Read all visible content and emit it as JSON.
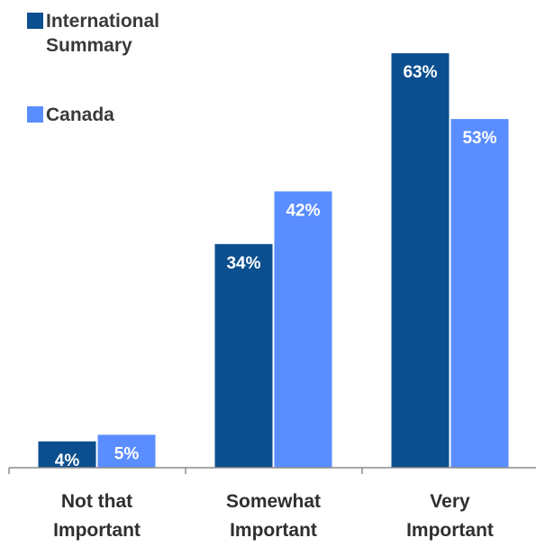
{
  "chart_data": {
    "type": "bar",
    "categories": [
      [
        "Not that",
        "Important"
      ],
      [
        "Somewhat",
        "Important"
      ],
      [
        "Very",
        "Important"
      ]
    ],
    "series": [
      {
        "name": "International Summary",
        "values": [
          4,
          34,
          63
        ],
        "labels": [
          "4%",
          "34%",
          "63%"
        ],
        "color": "#0b4f8f"
      },
      {
        "name": "Canada",
        "values": [
          5,
          42,
          53
        ],
        "labels": [
          "5%",
          "42%",
          "53%"
        ],
        "color": "#5a8dff"
      }
    ],
    "ylim": [
      0,
      72
    ],
    "grid": false,
    "legend_position": "top-left",
    "value_label_position": "inside-top"
  }
}
